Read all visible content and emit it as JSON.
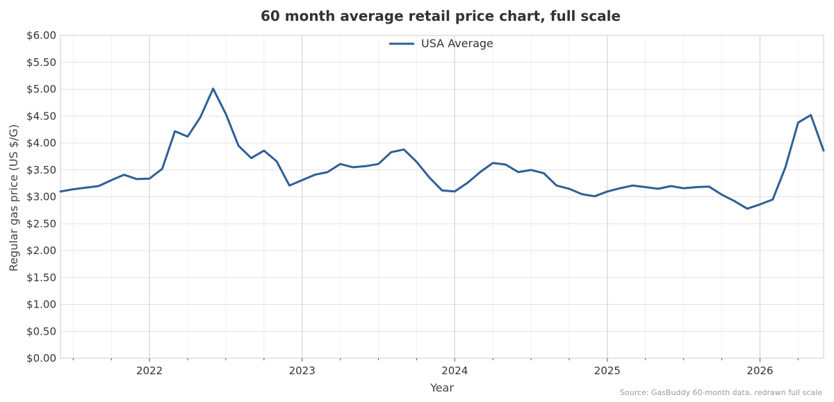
{
  "chart_data": {
    "type": "line",
    "title": "60 month average retail price chart, full scale",
    "xlabel": "Year",
    "ylabel": "Regular gas price (US $/G)",
    "ylim": [
      0,
      6
    ],
    "xlim": [
      "2021-06",
      "2026-06"
    ],
    "y_ticks": [
      0,
      0.5,
      1,
      1.5,
      2,
      2.5,
      3,
      3.5,
      4,
      4.5,
      5,
      5.5,
      6
    ],
    "y_tick_labels": [
      "$0.00",
      "$0.50",
      "$1.00",
      "$1.50",
      "$2.00",
      "$2.50",
      "$3.00",
      "$3.50",
      "$4.00",
      "$4.50",
      "$5.00",
      "$5.50",
      "$6.00"
    ],
    "x_ticks": [
      "2022",
      "2023",
      "2024",
      "2025",
      "2026"
    ],
    "grid": true,
    "legend": "top-center",
    "source": "Source: GasBuddy 60-month data, redrawn full scale",
    "series": [
      {
        "name": "USA Average",
        "color": "#2f5f97",
        "points": [
          [
            "2021-06",
            3.1
          ],
          [
            "2021-07",
            3.14
          ],
          [
            "2021-08",
            3.17
          ],
          [
            "2021-09",
            3.2
          ],
          [
            "2021-10",
            3.31
          ],
          [
            "2021-11",
            3.41
          ],
          [
            "2021-12",
            3.33
          ],
          [
            "2022-01",
            3.34
          ],
          [
            "2022-02",
            3.52
          ],
          [
            "2022-03",
            4.22
          ],
          [
            "2022-04",
            4.12
          ],
          [
            "2022-05",
            4.48
          ],
          [
            "2022-06",
            5.01
          ],
          [
            "2022-07",
            4.54
          ],
          [
            "2022-08",
            3.95
          ],
          [
            "2022-09",
            3.72
          ],
          [
            "2022-10",
            3.86
          ],
          [
            "2022-11",
            3.66
          ],
          [
            "2022-12",
            3.21
          ],
          [
            "2023-01",
            3.31
          ],
          [
            "2023-02",
            3.41
          ],
          [
            "2023-03",
            3.46
          ],
          [
            "2023-04",
            3.61
          ],
          [
            "2023-05",
            3.55
          ],
          [
            "2023-06",
            3.57
          ],
          [
            "2023-07",
            3.61
          ],
          [
            "2023-08",
            3.83
          ],
          [
            "2023-09",
            3.88
          ],
          [
            "2023-10",
            3.65
          ],
          [
            "2023-11",
            3.36
          ],
          [
            "2023-12",
            3.12
          ],
          [
            "2024-01",
            3.1
          ],
          [
            "2024-02",
            3.26
          ],
          [
            "2024-03",
            3.46
          ],
          [
            "2024-04",
            3.63
          ],
          [
            "2024-05",
            3.6
          ],
          [
            "2024-06",
            3.46
          ],
          [
            "2024-07",
            3.5
          ],
          [
            "2024-08",
            3.44
          ],
          [
            "2024-09",
            3.21
          ],
          [
            "2024-10",
            3.15
          ],
          [
            "2024-11",
            3.05
          ],
          [
            "2024-12",
            3.01
          ],
          [
            "2025-01",
            3.1
          ],
          [
            "2025-02",
            3.16
          ],
          [
            "2025-03",
            3.21
          ],
          [
            "2025-04",
            3.18
          ],
          [
            "2025-05",
            3.15
          ],
          [
            "2025-06",
            3.2
          ],
          [
            "2025-07",
            3.16
          ],
          [
            "2025-08",
            3.18
          ],
          [
            "2025-09",
            3.19
          ],
          [
            "2025-10",
            3.04
          ],
          [
            "2025-11",
            2.92
          ],
          [
            "2025-12",
            2.78
          ],
          [
            "2026-01",
            2.86
          ],
          [
            "2026-02",
            2.95
          ],
          [
            "2026-03",
            3.55
          ],
          [
            "2026-04",
            4.38
          ],
          [
            "2026-05",
            4.52
          ],
          [
            "2026-06",
            3.86
          ]
        ]
      }
    ]
  }
}
